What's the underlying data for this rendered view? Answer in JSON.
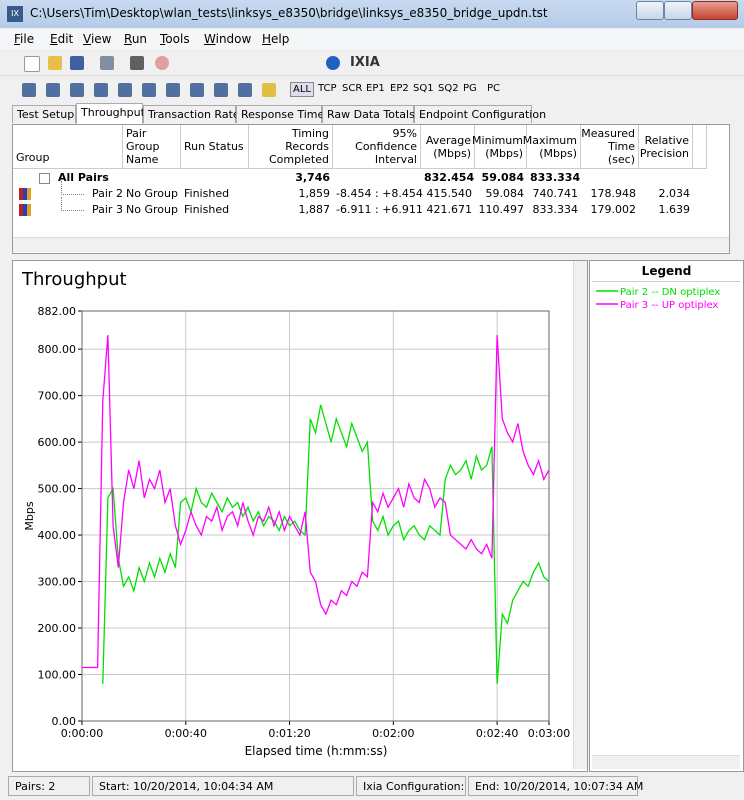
{
  "window": {
    "title": "C:\\Users\\Tim\\Desktop\\wlan_tests\\linksys_e8350\\bridge\\linksys_e8350_bridge_updn.tst"
  },
  "menu": [
    "File",
    "Edit",
    "View",
    "Run",
    "Tools",
    "Window",
    "Help"
  ],
  "toolbar": {
    "brand": "IXIA",
    "buttons": [
      "ALL",
      "TCP",
      "SCR",
      "EP1",
      "EP2",
      "SQ1",
      "SQ2",
      "PG",
      "PC"
    ]
  },
  "tabs": [
    "Test Setup",
    "Throughput",
    "Transaction Rate",
    "Response Time",
    "Raw Data Totals",
    "Endpoint Configuration"
  ],
  "table": {
    "columns": [
      "Group",
      "Pair Group Name",
      "Run Status",
      "Timing Records Completed",
      "95% Confidence Interval",
      "Average (Mbps)",
      "Minimum (Mbps)",
      "Maximum (Mbps)",
      "Measured Time (sec)",
      "Relative Precision"
    ],
    "rows": [
      [
        "All Pairs",
        null,
        null,
        "3,746",
        null,
        "832.454",
        "59.084",
        "833.334",
        null,
        null
      ],
      [
        "Pair 2",
        "No Group",
        "Finished",
        "1,859",
        "-8.454 : +8.454",
        "415.540",
        "59.084",
        "740.741",
        "178.948",
        "2.034"
      ],
      [
        "Pair 3",
        "No Group",
        "Finished",
        "1,887",
        "-6.911 : +6.911",
        "421.671",
        "110.497",
        "833.334",
        "179.002",
        "1.639"
      ]
    ]
  },
  "chart_data": {
    "type": "line",
    "title": "Throughput",
    "x_label": "Elapsed time (h:mm:ss)",
    "y_label": "Mbps",
    "legend_title": "Legend",
    "grid": true,
    "x": [
      0,
      2,
      4,
      6,
      8,
      10,
      12,
      14,
      16,
      18,
      20,
      22,
      24,
      26,
      28,
      30,
      32,
      34,
      36,
      38,
      40,
      42,
      44,
      46,
      48,
      50,
      52,
      54,
      56,
      58,
      60,
      62,
      64,
      66,
      68,
      70,
      72,
      74,
      76,
      78,
      80,
      82,
      84,
      86,
      88,
      90,
      92,
      94,
      96,
      98,
      100,
      102,
      104,
      106,
      108,
      110,
      112,
      114,
      116,
      118,
      120,
      122,
      124,
      126,
      128,
      130,
      132,
      134,
      136,
      138,
      140,
      142,
      144,
      146,
      148,
      150,
      152,
      154,
      156,
      158,
      160,
      162,
      164,
      166,
      168,
      170,
      172,
      174,
      176,
      178,
      180
    ],
    "xlim": [
      0,
      180
    ],
    "xticks": [
      {
        "value": 0,
        "label": "0:00:00"
      },
      {
        "value": 40,
        "label": "0:00:40"
      },
      {
        "value": 80,
        "label": "0:01:20"
      },
      {
        "value": 120,
        "label": "0:02:00"
      },
      {
        "value": 160,
        "label": "0:02:40"
      },
      {
        "value": 180,
        "label": "0:03:00"
      }
    ],
    "ylim": [
      0,
      882
    ],
    "yticks": [
      {
        "value": 0,
        "label": "0.00"
      },
      {
        "value": 100,
        "label": "100.00"
      },
      {
        "value": 200,
        "label": "200.00"
      },
      {
        "value": 300,
        "label": "300.00"
      },
      {
        "value": 400,
        "label": "400.00"
      },
      {
        "value": 500,
        "label": "500.00"
      },
      {
        "value": 600,
        "label": "600.00"
      },
      {
        "value": 700,
        "label": "700.00"
      },
      {
        "value": 800,
        "label": "800.00"
      },
      {
        "value": 882,
        "label": "882.00"
      }
    ],
    "series": [
      {
        "name": "Pair 2 -- DN optiplex",
        "color": "#00e000",
        "values": [
          null,
          null,
          null,
          null,
          80,
          480,
          500,
          350,
          290,
          310,
          280,
          330,
          300,
          340,
          310,
          350,
          320,
          360,
          330,
          470,
          480,
          450,
          500,
          470,
          460,
          490,
          470,
          450,
          480,
          460,
          470,
          440,
          460,
          430,
          450,
          420,
          440,
          430,
          410,
          440,
          420,
          430,
          410,
          400,
          650,
          620,
          680,
          640,
          600,
          650,
          620,
          590,
          640,
          610,
          580,
          600,
          430,
          410,
          440,
          400,
          420,
          430,
          390,
          410,
          420,
          400,
          390,
          420,
          410,
          400,
          520,
          550,
          530,
          540,
          560,
          520,
          570,
          540,
          550,
          590,
          80,
          230,
          210,
          260,
          280,
          300,
          290,
          320,
          340,
          310,
          300
        ]
      },
      {
        "name": "Pair 3 -- UP optiplex",
        "color": "#ff00ff",
        "values": [
          115,
          115,
          115,
          115,
          690,
          830,
          420,
          330,
          470,
          540,
          500,
          560,
          480,
          520,
          500,
          540,
          470,
          500,
          420,
          380,
          410,
          450,
          420,
          400,
          440,
          430,
          460,
          410,
          440,
          450,
          420,
          470,
          430,
          400,
          440,
          430,
          460,
          420,
          450,
          410,
          440,
          420,
          400,
          450,
          320,
          300,
          250,
          230,
          260,
          250,
          280,
          270,
          300,
          290,
          320,
          310,
          470,
          450,
          490,
          460,
          480,
          500,
          460,
          510,
          480,
          470,
          520,
          500,
          460,
          480,
          470,
          400,
          390,
          380,
          370,
          390,
          370,
          360,
          380,
          350,
          830,
          650,
          620,
          600,
          640,
          580,
          550,
          530,
          560,
          520,
          540
        ]
      }
    ]
  },
  "status": [
    "Pairs: 2",
    "Start: 10/20/2014, 10:04:34 AM",
    "Ixia Configuration:",
    "End: 10/20/2014, 10:07:34 AM"
  ]
}
